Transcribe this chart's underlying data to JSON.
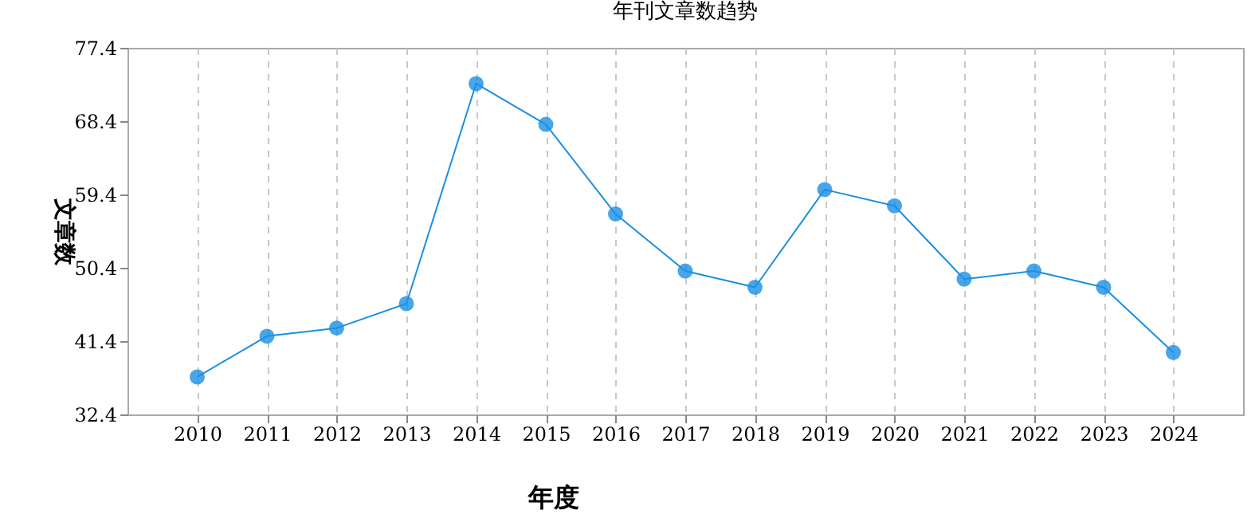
{
  "chart_data": {
    "type": "line",
    "title": "年刊文章数趋势",
    "xlabel": "年度",
    "ylabel": "文章数",
    "categories": [
      "2010",
      "2011",
      "2012",
      "2013",
      "2014",
      "2015",
      "2016",
      "2017",
      "2018",
      "2019",
      "2020",
      "2021",
      "2022",
      "2023",
      "2024"
    ],
    "series": [
      {
        "color": "#1a8fe3",
        "values": [
          37,
          42,
          43,
          46,
          73,
          68,
          57,
          50,
          48,
          60,
          58,
          49,
          50,
          48,
          40
        ]
      }
    ],
    "ylim": [
      32.4,
      77.4
    ],
    "yticks": [
      32.4,
      41.4,
      50.4,
      59.4,
      68.4,
      77.4
    ],
    "grid": "x",
    "marker": "circle"
  }
}
